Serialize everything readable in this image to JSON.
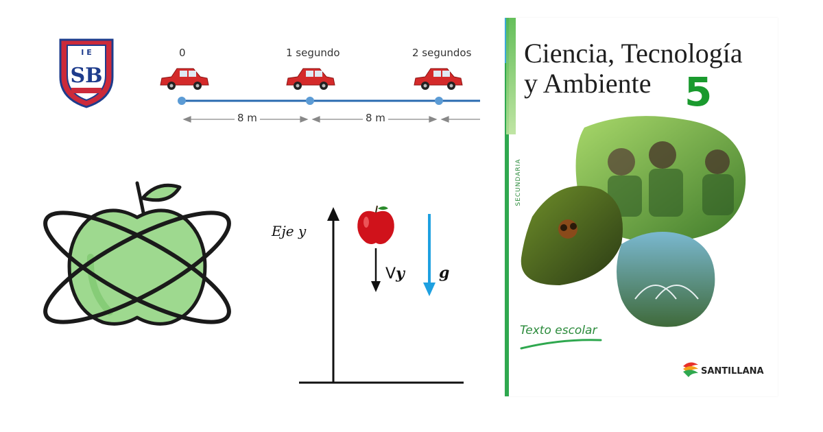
{
  "school_logo": {
    "initials_top": "I E",
    "monogram": "SB",
    "ribbon_text": "",
    "colors": {
      "shield_red": "#cc2a3a",
      "shield_blue": "#1e3c8c"
    }
  },
  "motion_diagram": {
    "time_labels": [
      "0",
      "1 segundo",
      "2 segundos"
    ],
    "distance_labels": [
      "8 m",
      "8 m"
    ],
    "colors": {
      "car": "#d42a2a",
      "track": "#2a6bb0",
      "point": "#5b9bd5"
    }
  },
  "apple_logo": {
    "icon": "apple-atom-icon",
    "colors": {
      "apple_fill": "#9ed98f",
      "outline": "#1a1a1a"
    }
  },
  "fall_diagram": {
    "axis_label": "Eje y",
    "velocity_label_prefix": "V",
    "velocity_label_sub": "y",
    "gravity_label": "g",
    "colors": {
      "apple": "#d0121b",
      "gravity_arrow": "#1ea0e0"
    }
  },
  "book_cover": {
    "title_line1": "Ciencia, Tecnología",
    "title_line2": "y Ambiente",
    "grade": "5",
    "series": "SECUNDARIA",
    "subtitle": "Texto escolar",
    "publisher": "SANTILLANA",
    "colors": {
      "accent_green": "#1a9a2e",
      "spine_blue": "#3aa8d8"
    }
  }
}
